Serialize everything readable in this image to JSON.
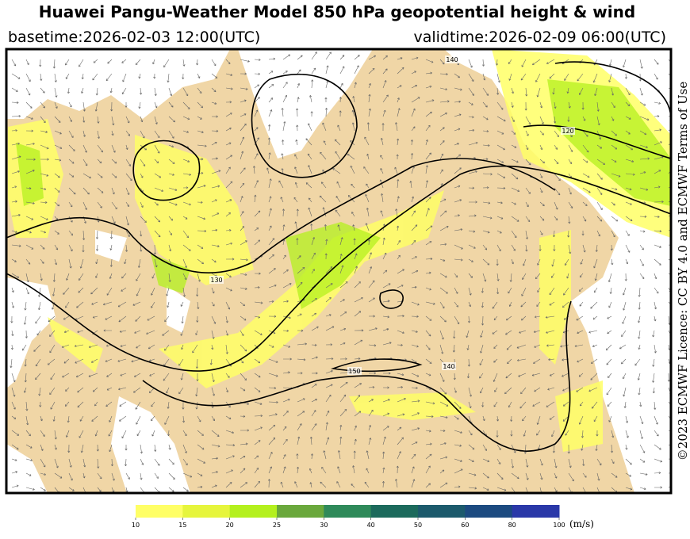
{
  "header": {
    "title": "Huawei Pangu-Weather Model 850 hPa geopotential height & wind",
    "basetime": "basetime:2026-02-03 12:00(UTC)",
    "validtime": "validtime:2026-02-09 06:00(UTC)"
  },
  "credit": "©2023 ECMWF Licence: CC BY 4.0 and ECMWF Terms of Use",
  "contour_labels": [
    "130",
    "150",
    "140",
    "120",
    "140"
  ],
  "legend": {
    "unit": "(m/s)",
    "ticks": [
      10,
      15,
      20,
      25,
      30,
      40,
      50,
      60,
      80,
      100
    ],
    "colors": [
      "#ffff66",
      "#e6f53c",
      "#b4f01e",
      "#6aa83c",
      "#2f8a5a",
      "#1c6a5c",
      "#1c5a6c",
      "#1c4a80",
      "#2a38a8"
    ]
  }
}
